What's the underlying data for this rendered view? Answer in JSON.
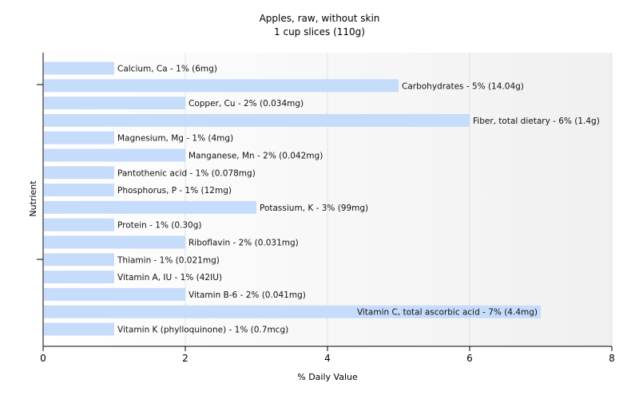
{
  "chart_data": {
    "type": "bar",
    "orientation": "horizontal",
    "title": "Apples, raw, without skin",
    "subtitle": "1 cup slices (110g)",
    "xlabel": "% Daily Value",
    "ylabel": "Nutrient",
    "xlim": [
      0,
      8
    ],
    "xticks": [
      0,
      2,
      4,
      6,
      8
    ],
    "grid": true,
    "bar_color": "#c6dcfb",
    "categories": [
      "Calcium, Ca",
      "Carbohydrates",
      "Copper, Cu",
      "Fiber, total dietary",
      "Magnesium, Mg",
      "Manganese, Mn",
      "Pantothenic acid",
      "Phosphorus, P",
      "Potassium, K",
      "Protein",
      "Riboflavin",
      "Thiamin",
      "Vitamin A, IU",
      "Vitamin B-6",
      "Vitamin C, total ascorbic acid",
      "Vitamin K (phylloquinone)"
    ],
    "values": [
      1,
      5,
      2,
      6,
      1,
      2,
      1,
      1,
      3,
      1,
      2,
      1,
      1,
      2,
      7,
      1
    ],
    "labels": [
      "Calcium, Ca - 1% (6mg)",
      "Carbohydrates - 5% (14.04g)",
      "Copper, Cu - 2% (0.034mg)",
      "Fiber, total dietary - 6% (1.4g)",
      "Magnesium, Mg - 1% (4mg)",
      "Manganese, Mn - 2% (0.042mg)",
      "Pantothenic acid - 1% (0.078mg)",
      "Phosphorus, P - 1% (12mg)",
      "Potassium, K - 3% (99mg)",
      "Protein - 1% (0.30g)",
      "Riboflavin - 2% (0.031mg)",
      "Thiamin - 1% (0.021mg)",
      "Vitamin A, IU - 1% (42IU)",
      "Vitamin B-6 - 2% (0.041mg)",
      "Vitamin C, total ascorbic acid - 7% (4.4mg)",
      "Vitamin K (phylloquinone) - 1% (0.7mcg)"
    ]
  }
}
